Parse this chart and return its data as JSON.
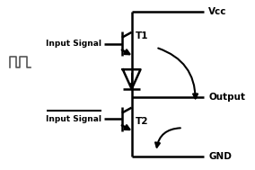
{
  "bg_color": "#ffffff",
  "line_color": "#000000",
  "vcc_label": "Vcc",
  "gnd_label": "GND",
  "output_label": "Output",
  "t1_label": "T1",
  "t2_label": "T2",
  "input1_label": "Input Signal",
  "input2_label": "Input Signal",
  "figw": 2.84,
  "figh": 1.89,
  "dpi": 100
}
